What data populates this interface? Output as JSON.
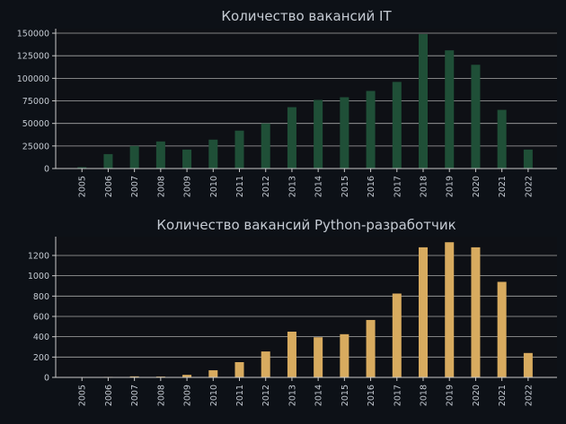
{
  "colors": {
    "background": "#0d1117",
    "plot_background": "#0e1015",
    "axis": "#c9c9c9",
    "grid": "#a9a9a9",
    "text": "#c5cbd3",
    "bar_it": "#1f4f37",
    "bar_python": "#d8ab5f"
  },
  "chart_data": [
    {
      "type": "bar",
      "title": "Количество вакансий IT",
      "xlabel": "",
      "ylabel": "",
      "categories": [
        "2005",
        "2006",
        "2007",
        "2008",
        "2009",
        "2010",
        "2011",
        "2012",
        "2013",
        "2014",
        "2015",
        "2016",
        "2017",
        "2018",
        "2019",
        "2020",
        "2021",
        "2022"
      ],
      "values": [
        1500,
        16000,
        25000,
        30000,
        21000,
        32000,
        42000,
        50000,
        68000,
        76000,
        79000,
        86000,
        96000,
        149000,
        131000,
        115000,
        65000,
        21000
      ],
      "ylim": [
        0,
        155000
      ],
      "yticks": [
        0,
        25000,
        50000,
        75000,
        100000,
        125000,
        150000
      ],
      "grid": "horizontal",
      "color": "#1f4f37"
    },
    {
      "type": "bar",
      "title": "Количество вакансий Python-разработчик",
      "xlabel": "",
      "ylabel": "",
      "categories": [
        "2005",
        "2006",
        "2007",
        "2008",
        "2009",
        "2010",
        "2011",
        "2012",
        "2013",
        "2014",
        "2015",
        "2016",
        "2017",
        "2018",
        "2019",
        "2020",
        "2021",
        "2022"
      ],
      "values": [
        0,
        5,
        10,
        8,
        25,
        70,
        150,
        255,
        450,
        395,
        425,
        565,
        825,
        1280,
        1330,
        1280,
        940,
        240
      ],
      "ylim": [
        0,
        1385
      ],
      "yticks": [
        0,
        200,
        400,
        600,
        800,
        1000,
        1200
      ],
      "grid": "horizontal",
      "color": "#d8ab5f"
    }
  ]
}
